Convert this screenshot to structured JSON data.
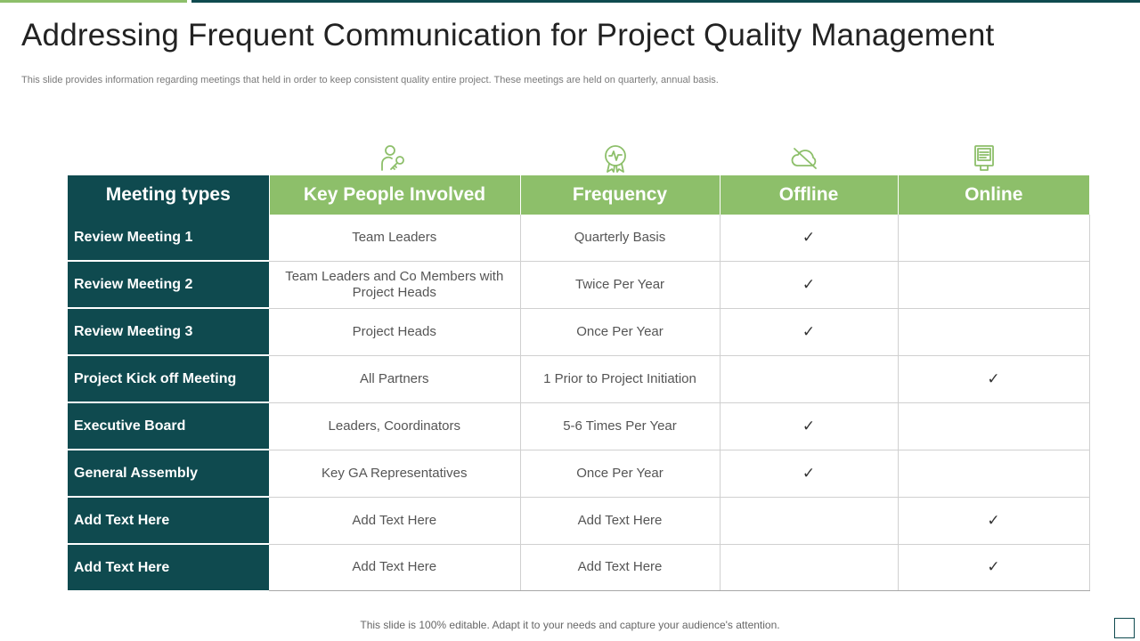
{
  "title": "Addressing Frequent Communication for Project Quality Management",
  "subtitle": "This slide provides information regarding meetings that held in order to keep consistent quality entire project. These meetings are held on quarterly, annual basis.",
  "colors": {
    "teal": "#0f4a4f",
    "green": "#8dbf6a"
  },
  "icons": [
    "people-key-icon",
    "award-ribbon-icon",
    "cloud-offline-icon",
    "computer-online-icon"
  ],
  "table": {
    "headers": [
      "Meeting types",
      "Key People Involved",
      "Frequency",
      "Offline",
      "Online"
    ],
    "rows": [
      {
        "type": "Review Meeting  1",
        "people": "Team Leaders",
        "frequency": "Quarterly Basis",
        "offline": "✓",
        "online": ""
      },
      {
        "type": "Review Meeting 2",
        "people": "Team Leaders and Co Members with Project Heads",
        "frequency": "Twice Per Year",
        "offline": "✓",
        "online": ""
      },
      {
        "type": "Review Meeting  3",
        "people": "Project Heads",
        "frequency": "Once Per Year",
        "offline": "✓",
        "online": ""
      },
      {
        "type": "Project Kick off Meeting",
        "people": "All Partners",
        "frequency": "1 Prior to Project Initiation",
        "offline": "",
        "online": "✓"
      },
      {
        "type": "Executive Board",
        "people": "Leaders, Coordinators",
        "frequency": "5-6 Times Per Year",
        "offline": "✓",
        "online": ""
      },
      {
        "type": "General Assembly",
        "people": "Key GA Representatives",
        "frequency": "Once Per Year",
        "offline": "✓",
        "online": ""
      },
      {
        "type": "Add Text Here",
        "people": "Add Text Here",
        "frequency": "Add Text Here",
        "offline": "",
        "online": "✓"
      },
      {
        "type": "Add Text Here",
        "people": "Add Text Here",
        "frequency": "Add Text Here",
        "offline": "",
        "online": "✓"
      }
    ]
  },
  "footer": "This slide is 100% editable. Adapt it to your needs and capture your audience's attention."
}
